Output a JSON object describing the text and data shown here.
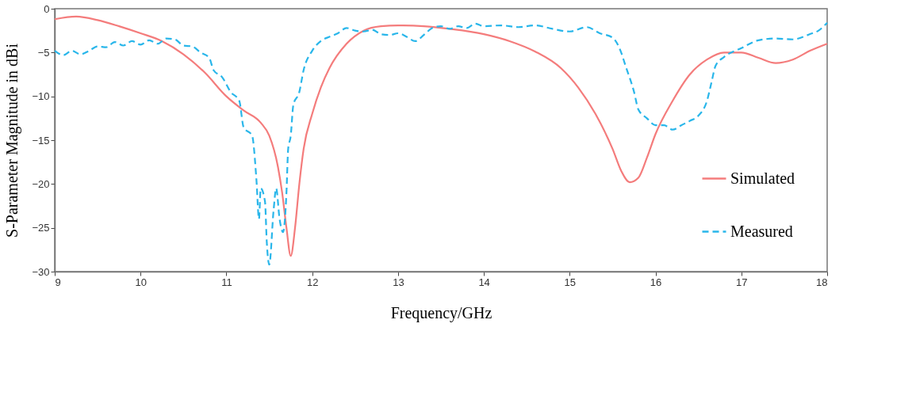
{
  "chart_data": {
    "type": "line",
    "xlabel": "Frequency/GHz",
    "ylabel": "S-Parameter Magnitude in dBi",
    "xlim": [
      9,
      18
    ],
    "xticks": [
      9,
      10,
      11,
      12,
      13,
      14,
      15,
      16,
      17,
      18
    ],
    "ylim": [
      -30,
      0
    ],
    "yticks": [
      -30,
      -25,
      -20,
      -15,
      -10,
      -5,
      0
    ],
    "grid": false,
    "legend": "bottom right",
    "marker": "none",
    "series": [
      {
        "name": "Simulated",
        "color": "#f47c7c",
        "line_style": "solid",
        "x": [
          9.0,
          9.25,
          9.5,
          9.75,
          10.0,
          10.25,
          10.5,
          10.75,
          11.0,
          11.2,
          11.4,
          11.5,
          11.6,
          11.65,
          11.7,
          11.75,
          11.8,
          11.85,
          11.9,
          12.0,
          12.1,
          12.2,
          12.4,
          12.6,
          12.8,
          13.0,
          13.3,
          13.6,
          14.0,
          14.3,
          14.6,
          14.9,
          15.1,
          15.3,
          15.5,
          15.6,
          15.7,
          15.8,
          15.9,
          16.0,
          16.2,
          16.4,
          16.6,
          16.8,
          17.0,
          17.2,
          17.4,
          17.6,
          17.8,
          18.0
        ],
        "values": [
          -1.2,
          -0.9,
          -1.3,
          -2.0,
          -2.8,
          -3.7,
          -5.2,
          -7.3,
          -10.0,
          -11.6,
          -13.0,
          -14.5,
          -18,
          -21,
          -25,
          -28.2,
          -25,
          -20,
          -16,
          -12,
          -9,
          -6.8,
          -4,
          -2.5,
          -2.0,
          -1.9,
          -2.0,
          -2.3,
          -2.9,
          -3.7,
          -4.9,
          -6.8,
          -9,
          -12,
          -16,
          -18.5,
          -19.8,
          -19.3,
          -17,
          -14.3,
          -10.5,
          -7.5,
          -5.8,
          -5.0,
          -5.0,
          -5.6,
          -6.2,
          -5.8,
          -4.8,
          -4.0
        ]
      },
      {
        "name": "Measured",
        "color": "#29b6ea",
        "line_style": "dashed",
        "x": [
          9.0,
          9.1,
          9.2,
          9.3,
          9.4,
          9.5,
          9.6,
          9.7,
          9.8,
          9.9,
          10.0,
          10.1,
          10.2,
          10.3,
          10.4,
          10.5,
          10.6,
          10.7,
          10.8,
          10.85,
          10.95,
          11.05,
          11.15,
          11.2,
          11.3,
          11.35,
          11.38,
          11.4,
          11.45,
          11.47,
          11.5,
          11.55,
          11.58,
          11.62,
          11.66,
          11.7,
          11.72,
          11.75,
          11.78,
          11.85,
          11.9,
          12.0,
          12.1,
          12.2,
          12.3,
          12.4,
          12.5,
          12.6,
          12.7,
          12.8,
          12.9,
          13.0,
          13.1,
          13.2,
          13.3,
          13.4,
          13.5,
          13.6,
          13.7,
          13.8,
          13.9,
          14.0,
          14.2,
          14.4,
          14.6,
          14.8,
          15.0,
          15.2,
          15.35,
          15.5,
          15.6,
          15.65,
          15.75,
          15.8,
          15.9,
          16.0,
          16.1,
          16.2,
          16.3,
          16.4,
          16.5,
          16.6,
          16.65,
          16.7,
          16.8,
          17.0,
          17.2,
          17.4,
          17.6,
          17.8,
          17.9,
          18.0
        ],
        "values": [
          -4.8,
          -5.3,
          -4.8,
          -5.2,
          -4.8,
          -4.3,
          -4.4,
          -3.8,
          -4.2,
          -3.7,
          -4.1,
          -3.6,
          -4.0,
          -3.4,
          -3.5,
          -4.2,
          -4.3,
          -5.0,
          -5.6,
          -7.0,
          -7.8,
          -9.5,
          -10.5,
          -13.5,
          -14.5,
          -19.5,
          -24,
          -20.5,
          -22,
          -26.5,
          -29.2,
          -23,
          -20.5,
          -24,
          -25.5,
          -21,
          -16,
          -14.5,
          -11,
          -9.5,
          -7,
          -4.8,
          -3.7,
          -3.2,
          -2.8,
          -2.2,
          -2.5,
          -2.6,
          -2.4,
          -2.9,
          -3.0,
          -2.8,
          -3.2,
          -3.7,
          -3.0,
          -2.2,
          -2.0,
          -2.3,
          -2.0,
          -2.2,
          -1.7,
          -2.0,
          -1.9,
          -2.1,
          -1.9,
          -2.3,
          -2.6,
          -2.1,
          -2.8,
          -3.3,
          -5.0,
          -6.5,
          -9.5,
          -11.5,
          -12.5,
          -13.3,
          -13.3,
          -13.8,
          -13.3,
          -12.8,
          -12.2,
          -10.5,
          -8.5,
          -6.5,
          -5.5,
          -4.5,
          -3.6,
          -3.4,
          -3.5,
          -2.9,
          -2.5,
          -1.6
        ]
      }
    ]
  }
}
